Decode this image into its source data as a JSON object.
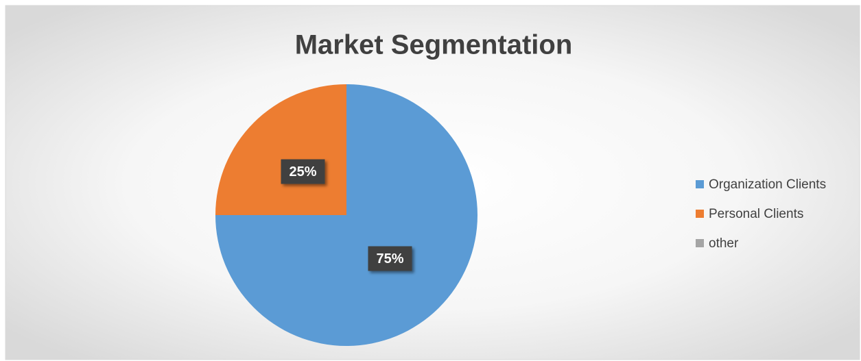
{
  "chart_data": {
    "type": "pie",
    "title": "Market Segmentation",
    "categories": [
      "Organization Clients",
      "Personal Clients",
      "other"
    ],
    "values": [
      75,
      25,
      0
    ],
    "value_labels": [
      "75%",
      "25%",
      null
    ],
    "colors": [
      "#5b9bd5",
      "#ed7d31",
      "#a5a5a5"
    ],
    "legend": "right"
  }
}
